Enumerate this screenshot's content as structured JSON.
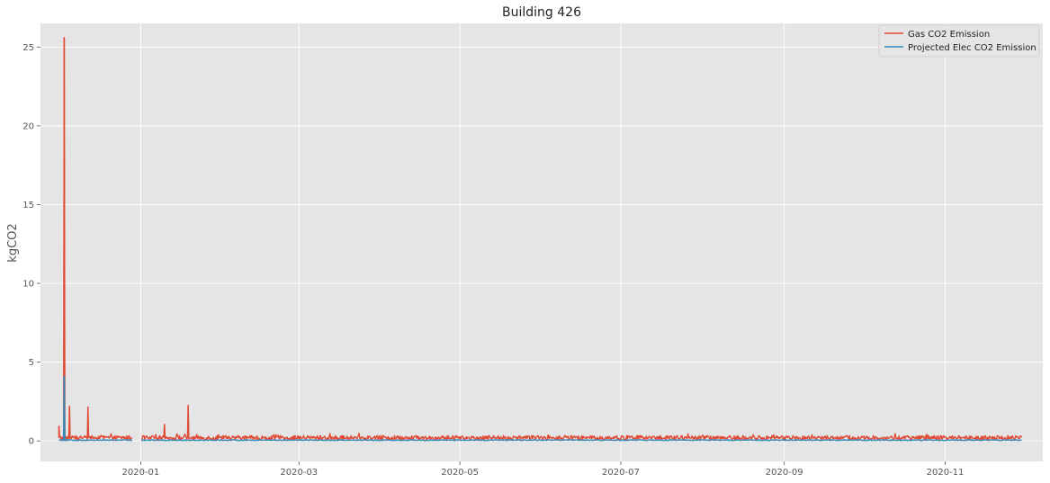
{
  "chart_data": {
    "type": "line",
    "title": "Building 426",
    "xlabel": "",
    "ylabel": "kgCO2",
    "ylim": [
      -1.3,
      26.5
    ],
    "xlim": [
      "2019-11-24",
      "2020-12-08"
    ],
    "grid": true,
    "legend_position": "top-right",
    "x_ticks": [
      "2020-01",
      "2020-03",
      "2020-05",
      "2020-07",
      "2020-09",
      "2020-11"
    ],
    "y_ticks": [
      0,
      5,
      10,
      15,
      20,
      25
    ],
    "colors": {
      "background": "#e5e5e5",
      "grid": "#ffffff",
      "gas": "#e24a33",
      "elec": "#348abd"
    },
    "series": [
      {
        "name": "Gas CO2 Emission",
        "color": "#e24a33",
        "baseline": 0.2,
        "peaks": [
          {
            "x": "2019-12-01",
            "y": 0.95
          },
          {
            "x": "2019-12-03",
            "y": 25.6
          },
          {
            "x": "2019-12-05",
            "y": 2.2
          },
          {
            "x": "2019-12-12",
            "y": 2.15
          },
          {
            "x": "2020-01-10",
            "y": 1.05
          },
          {
            "x": "2020-01-19",
            "y": 2.25
          }
        ],
        "gaps": [
          [
            "2019-12-29",
            "2020-01-01"
          ]
        ]
      },
      {
        "name": "Projected Elec CO2 Emission",
        "color": "#348abd",
        "baseline": 0.05,
        "peaks": [
          {
            "x": "2019-12-03",
            "y": 4.1
          }
        ],
        "gaps": [
          [
            "2019-12-29",
            "2020-01-01"
          ]
        ]
      }
    ],
    "x_range": [
      "2019-12-01",
      "2020-11-30"
    ]
  }
}
